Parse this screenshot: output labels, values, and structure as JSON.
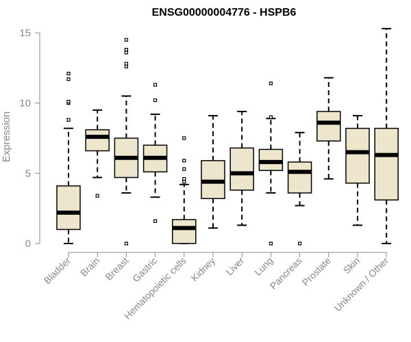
{
  "chart_data": {
    "type": "box",
    "title": "ENSG00000004776 - HSPB6",
    "xlabel": "",
    "ylabel": "Expression",
    "ylim": [
      0,
      15.5
    ],
    "yticks": [
      0,
      5,
      10,
      15
    ],
    "colors": {
      "box_fill": "#EDE6CC",
      "stroke": "#000000",
      "axis": "#888888"
    },
    "categories": [
      "Bladder",
      "Brain",
      "Breast",
      "Gastric",
      "Hematopoietic cells",
      "Kidney",
      "Liver",
      "Lung",
      "Pancreas",
      "Prostate",
      "Skin",
      "Unknown / Other"
    ],
    "boxes": [
      {
        "name": "Bladder",
        "whisker_low": 0.0,
        "q1": 1.0,
        "median": 2.2,
        "q3": 4.1,
        "whisker_high": 8.2,
        "outliers": [
          8.8,
          10.0,
          10.1,
          11.7,
          12.1
        ]
      },
      {
        "name": "Brain",
        "whisker_low": 4.7,
        "q1": 6.6,
        "median": 7.6,
        "q3": 8.1,
        "whisker_high": 9.5,
        "outliers": [
          3.4
        ]
      },
      {
        "name": "Breast",
        "whisker_low": 3.6,
        "q1": 4.7,
        "median": 6.1,
        "q3": 7.5,
        "whisker_high": 10.5,
        "outliers": [
          0.0,
          12.6,
          12.8,
          13.6,
          13.8,
          14.5
        ]
      },
      {
        "name": "Gastric",
        "whisker_low": 3.3,
        "q1": 5.1,
        "median": 6.1,
        "q3": 7.0,
        "whisker_high": 9.2,
        "outliers": [
          1.6,
          10.2,
          11.3
        ]
      },
      {
        "name": "Hematopoietic cells",
        "whisker_low": 0.0,
        "q1": 0.0,
        "median": 1.1,
        "q3": 1.7,
        "whisker_high": 4.2,
        "outliers": [
          4.4,
          4.6,
          5.3,
          5.9,
          7.5
        ]
      },
      {
        "name": "Kidney",
        "whisker_low": 1.1,
        "q1": 3.2,
        "median": 4.4,
        "q3": 5.9,
        "whisker_high": 9.1,
        "outliers": []
      },
      {
        "name": "Liver",
        "whisker_low": 1.3,
        "q1": 3.8,
        "median": 5.0,
        "q3": 6.8,
        "whisker_high": 9.4,
        "outliers": []
      },
      {
        "name": "Lung",
        "whisker_low": 3.6,
        "q1": 5.2,
        "median": 5.8,
        "q3": 6.7,
        "whisker_high": 8.9,
        "outliers": [
          0.0,
          9.0,
          11.4
        ]
      },
      {
        "name": "Pancreas",
        "whisker_low": 2.7,
        "q1": 3.6,
        "median": 5.1,
        "q3": 5.8,
        "whisker_high": 7.9,
        "outliers": [
          0.0
        ]
      },
      {
        "name": "Prostate",
        "whisker_low": 4.6,
        "q1": 7.3,
        "median": 8.6,
        "q3": 9.4,
        "whisker_high": 11.8,
        "outliers": []
      },
      {
        "name": "Skin",
        "whisker_low": 1.3,
        "q1": 4.3,
        "median": 6.5,
        "q3": 8.2,
        "whisker_high": 9.1,
        "outliers": []
      },
      {
        "name": "Unknown / Other",
        "whisker_low": 0.0,
        "q1": 3.1,
        "median": 6.3,
        "q3": 8.2,
        "whisker_high": 15.3,
        "outliers": []
      }
    ]
  }
}
